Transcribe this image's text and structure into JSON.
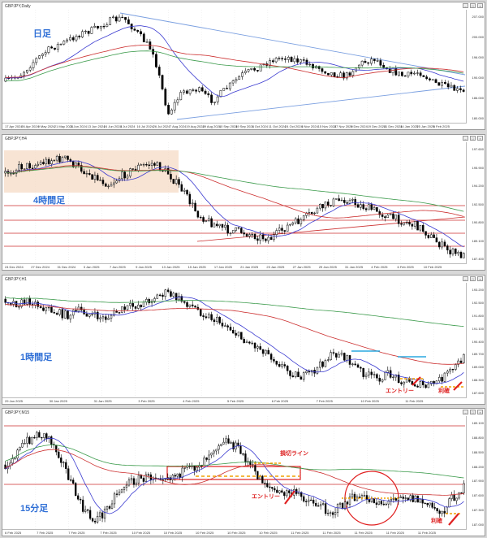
{
  "colors": {
    "bull": "#ffffff",
    "bear": "#000000",
    "ma_fast": "#3a3ad0",
    "ma_slow": "#cc2f2f",
    "ma_long": "#3a9a4a",
    "level": "#cc2f2f",
    "trend": "#7a9fe0",
    "box_fill": "#f5d9c2",
    "accent_red": "#e02020",
    "accent_orange": "#f0a000",
    "accent_cyan": "#2aa8e0",
    "label_blue": "#2f6fd6"
  },
  "panes": [
    {
      "id": "daily",
      "window_title": "GBPJPY,Daily",
      "tf_label": "日足",
      "price_ticks": [
        "207.000",
        "200.000",
        "196.000",
        "190.000",
        "186.000",
        "180.000"
      ],
      "time_ticks": [
        "17 Apr 2024",
        "26 Apr 2024",
        "9 May 2024",
        "21 May 2024",
        "3 Jun 2024",
        "13 Jun 2024",
        "24 Jun 2024",
        "3 Jul 2024",
        "16 Jul 2024",
        "26 Jul 2024",
        "7 Aug 2024",
        "19 Aug 2024",
        "29 Aug 2024",
        "10 Sep 2024",
        "19 Sep 2024",
        "1 Oct 2024",
        "11 Oct 2024",
        "24 Oct 2024",
        "5 Nov 2024",
        "15 Nov 2024",
        "27 Nov 2024",
        "9 Dec 2024",
        "19 Dec 2024",
        "31 Dec 2024",
        "14 Jan 2025",
        "25 Jan 2025",
        "6 Feb 2025"
      ]
    },
    {
      "id": "h4",
      "window_title": "GBPJPY,H4",
      "tf_label": "4時間足",
      "price_ticks": [
        "197.600",
        "195.900",
        "194.200",
        "192.500",
        "190.800",
        "189.100",
        "187.400"
      ],
      "time_ticks": [
        "24 Dec 2024",
        "27 Dec 2024",
        "31 Dec 2024",
        "3 Jan 2025",
        "7 Jan 2025",
        "9 Jan 2025",
        "13 Jan 2025",
        "15 Jan 2025",
        "17 Jan 2025",
        "21 Jan 2025",
        "23 Jan 2025",
        "27 Jan 2025",
        "29 Jan 2025",
        "31 Jan 2025",
        "4 Feb 2025",
        "6 Feb 2025",
        "10 Feb 2025"
      ]
    },
    {
      "id": "h1",
      "window_title": "GBPJPY,H1",
      "tf_label": "1時間足",
      "price_ticks": [
        "193.200",
        "192.500",
        "191.800",
        "191.100",
        "190.400",
        "189.700",
        "189.000",
        "188.300",
        "187.600"
      ],
      "time_ticks": [
        "29 Jan 2025",
        "30 Jan 2025",
        "31 Jan 2025",
        "3 Feb 2025",
        "4 Feb 2025",
        "5 Feb 2025",
        "6 Feb 2025",
        "7 Feb 2025",
        "10 Feb 2025",
        "11 Feb 2025"
      ],
      "annotations": {
        "entry": "エントリー",
        "take_profit": "利確"
      }
    },
    {
      "id": "m15",
      "window_title": "GBPJPY,M15",
      "tf_label": "15分足",
      "price_ticks": [
        "189.100",
        "188.800",
        "188.500",
        "188.200",
        "187.900",
        "187.600",
        "187.300",
        "187.000"
      ],
      "time_ticks": [
        "6 Feb 2025",
        "7 Feb 2025",
        "7 Feb 2025",
        "7 Feb 2025",
        "10 Feb 2025",
        "10 Feb 2025",
        "10 Feb 2025",
        "10 Feb 2025",
        "10 Feb 2025",
        "11 Feb 2025",
        "11 Feb 2025",
        "11 Feb 2025",
        "11 Feb 2025",
        "11 Feb 2025"
      ],
      "annotations": {
        "stop_line": "損切ライン",
        "entry": "エントリー",
        "take_profit": "利確"
      }
    }
  ]
}
